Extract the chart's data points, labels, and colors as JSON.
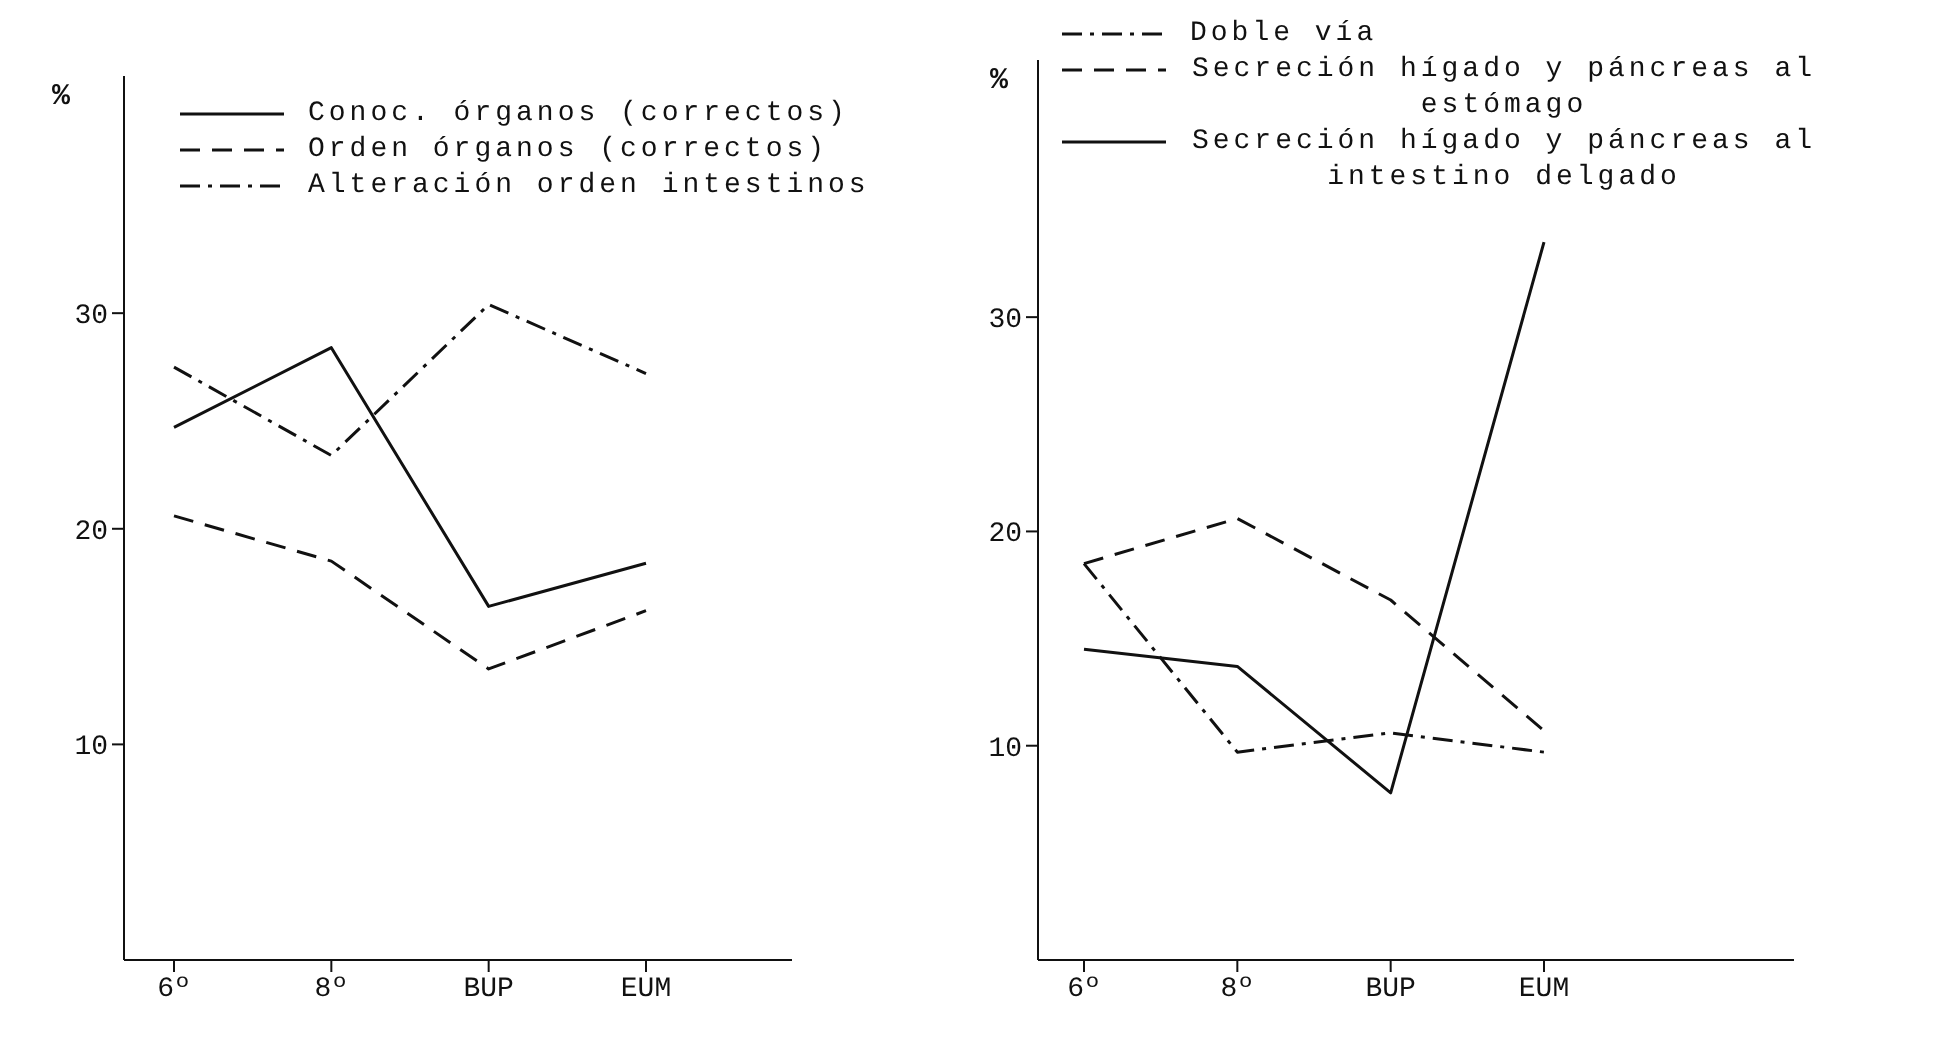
{
  "chart_data": [
    {
      "type": "line",
      "ylabel": "%",
      "categories": [
        "6º",
        "8º",
        "BUP",
        "EUM"
      ],
      "legend": "top",
      "ylim": [
        0,
        41
      ],
      "yticks": [
        10,
        20,
        30
      ],
      "series": [
        {
          "name": "Conoc. órganos (correctos)",
          "color": "#111111",
          "line_style": "solid",
          "values": [
            24.7,
            28.4,
            16.4,
            18.4
          ]
        },
        {
          "name": "Orden órganos (correctos)",
          "color": "#111111",
          "line_style": "dashed",
          "values": [
            20.6,
            18.5,
            13.5,
            16.2
          ]
        },
        {
          "name": "Alteración orden intestinos",
          "color": "#111111",
          "line_style": "dotted",
          "values": [
            27.5,
            23.4,
            30.4,
            27.2
          ]
        }
      ]
    },
    {
      "type": "line",
      "ylabel": "%",
      "categories": [
        "6º",
        "8º",
        "BUP",
        "EUM"
      ],
      "legend": "top",
      "ylim": [
        0,
        42
      ],
      "yticks": [
        10,
        20,
        30
      ],
      "series": [
        {
          "name": "Doble vía",
          "color": "#111111",
          "line_style": "dotted",
          "values": [
            18.5,
            9.7,
            10.6,
            9.7
          ]
        },
        {
          "name": "Secreción hígado y páncreas al estómago",
          "color": "#111111",
          "line_style": "dashed",
          "values": [
            18.5,
            20.6,
            16.8,
            10.7
          ]
        },
        {
          "name": "Secreción hígado y páncreas al intestino delgado",
          "color": "#111111",
          "line_style": "solid",
          "values": [
            14.5,
            13.7,
            7.8,
            33.5
          ]
        }
      ]
    }
  ]
}
